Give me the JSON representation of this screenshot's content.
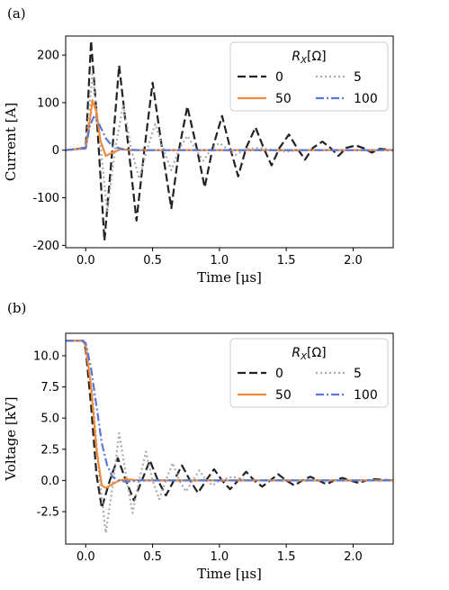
{
  "chart_data": [
    {
      "type": "line",
      "panel_label": "(a)",
      "xlabel": "Time [μs]",
      "ylabel": "Current [A]",
      "xlim": [
        -0.15,
        2.3
      ],
      "ylim": [
        -205,
        240
      ],
      "xticks": [
        0.0,
        0.5,
        1.0,
        1.5,
        2.0
      ],
      "xtick_labels": [
        "0.0",
        "0.5",
        "1.0",
        "1.5",
        "2.0"
      ],
      "yticks": [
        200,
        100,
        0,
        -100,
        -200
      ],
      "ytick_labels": [
        "200",
        "100",
        "0",
        "-100",
        "-200"
      ],
      "legend": {
        "title": "R_X[Ω]",
        "position": "top-right",
        "columns": 2
      },
      "series": [
        {
          "name": "0",
          "color": "#222222",
          "style": "dashed",
          "x": [
            -0.15,
            0.0,
            0.04,
            0.08,
            0.14,
            0.2,
            0.25,
            0.32,
            0.38,
            0.44,
            0.5,
            0.57,
            0.64,
            0.7,
            0.76,
            0.83,
            0.89,
            0.95,
            1.02,
            1.08,
            1.14,
            1.2,
            1.27,
            1.33,
            1.39,
            1.45,
            1.52,
            1.58,
            1.64,
            1.7,
            1.77,
            1.83,
            1.89,
            1.95,
            2.02,
            2.08,
            2.14,
            2.2,
            2.3
          ],
          "y": [
            0,
            5,
            230,
            80,
            -190,
            5,
            178,
            5,
            -148,
            5,
            142,
            5,
            -122,
            5,
            92,
            5,
            -78,
            5,
            72,
            5,
            -55,
            5,
            48,
            5,
            -32,
            5,
            33,
            5,
            -20,
            5,
            18,
            5,
            -12,
            5,
            10,
            4,
            -5,
            3,
            0
          ]
        },
        {
          "name": "5",
          "color": "#aaaaaa",
          "style": "dotted",
          "x": [
            -0.15,
            0.0,
            0.05,
            0.1,
            0.16,
            0.22,
            0.28,
            0.34,
            0.4,
            0.46,
            0.52,
            0.58,
            0.64,
            0.7,
            0.76,
            0.82,
            0.88,
            0.94,
            1.0,
            1.06,
            1.12,
            1.2,
            1.3,
            1.4,
            1.5,
            1.6,
            1.8,
            2.0,
            2.3
          ],
          "y": [
            0,
            3,
            160,
            40,
            -130,
            3,
            95,
            3,
            -60,
            3,
            55,
            3,
            -42,
            3,
            30,
            3,
            -22,
            3,
            15,
            3,
            -10,
            2,
            5,
            0,
            -3,
            0,
            0,
            0,
            0
          ]
        },
        {
          "name": "50",
          "color": "#f08a3c",
          "style": "solid",
          "x": [
            -0.15,
            0.0,
            0.03,
            0.05,
            0.08,
            0.11,
            0.15,
            0.2,
            0.26,
            0.35,
            0.5,
            2.3
          ],
          "y": [
            0,
            4,
            60,
            105,
            80,
            20,
            -12,
            -5,
            2,
            0,
            0,
            0
          ]
        },
        {
          "name": "100",
          "color": "#5b78d8",
          "style": "dashdot",
          "x": [
            -0.15,
            0.0,
            0.03,
            0.06,
            0.1,
            0.15,
            0.2,
            0.28,
            0.4,
            0.6,
            2.3
          ],
          "y": [
            0,
            4,
            50,
            70,
            55,
            25,
            8,
            2,
            0,
            0,
            0
          ]
        }
      ]
    },
    {
      "type": "line",
      "panel_label": "(b)",
      "xlabel": "Time [μs]",
      "ylabel": "Voltage [kV]",
      "xlim": [
        -0.15,
        2.3
      ],
      "ylim": [
        -5.1,
        11.8
      ],
      "xticks": [
        0.0,
        0.5,
        1.0,
        1.5,
        2.0
      ],
      "xtick_labels": [
        "0.0",
        "0.5",
        "1.0",
        "1.5",
        "2.0"
      ],
      "yticks": [
        10.0,
        7.5,
        5.0,
        2.5,
        0.0,
        -2.5
      ],
      "ytick_labels": [
        "10.0",
        "7.5",
        "5.0",
        "2.5",
        "0.0",
        "-2.5"
      ],
      "legend": {
        "title": "R_X[Ω]",
        "position": "top-right",
        "columns": 2
      },
      "series": [
        {
          "name": "0",
          "color": "#222222",
          "style": "dashed",
          "x": [
            -0.15,
            -0.02,
            0.0,
            0.04,
            0.08,
            0.12,
            0.18,
            0.24,
            0.3,
            0.36,
            0.42,
            0.48,
            0.54,
            0.6,
            0.66,
            0.72,
            0.78,
            0.84,
            0.9,
            0.96,
            1.02,
            1.08,
            1.14,
            1.2,
            1.26,
            1.32,
            1.38,
            1.44,
            1.5,
            1.56,
            1.62,
            1.68,
            1.74,
            1.8,
            1.86,
            1.92,
            1.98,
            2.04,
            2.1,
            2.16,
            2.3
          ],
          "y": [
            11.2,
            11.2,
            10.5,
            6.0,
            0.5,
            -2.2,
            0.0,
            1.8,
            0.0,
            -1.6,
            0.0,
            1.6,
            0.0,
            -1.2,
            0.0,
            1.2,
            0.0,
            -1.0,
            0.0,
            0.9,
            0.0,
            -0.7,
            0.0,
            0.7,
            0.0,
            -0.5,
            0.0,
            0.5,
            0.0,
            -0.4,
            0.0,
            0.3,
            0.0,
            -0.3,
            0.0,
            0.2,
            0.0,
            -0.2,
            0.0,
            0.1,
            0.0
          ]
        },
        {
          "name": "5",
          "color": "#aaaaaa",
          "style": "dotted",
          "x": [
            -0.15,
            -0.02,
            0.0,
            0.05,
            0.1,
            0.15,
            0.2,
            0.25,
            0.3,
            0.35,
            0.4,
            0.45,
            0.5,
            0.55,
            0.6,
            0.65,
            0.7,
            0.75,
            0.8,
            0.85,
            0.9,
            0.95,
            1.0,
            1.1,
            1.2,
            1.4,
            2.3
          ],
          "y": [
            11.2,
            11.2,
            10.8,
            7.0,
            0.5,
            -4.2,
            -0.5,
            3.8,
            0.5,
            -2.6,
            0.0,
            2.3,
            0.0,
            -1.5,
            0.0,
            1.4,
            0.0,
            -0.9,
            0.0,
            0.8,
            0.0,
            -0.4,
            0.0,
            0.3,
            0.0,
            0.0,
            0.0
          ]
        },
        {
          "name": "50",
          "color": "#f08a3c",
          "style": "solid",
          "x": [
            -0.15,
            -0.02,
            0.0,
            0.04,
            0.08,
            0.12,
            0.15,
            0.2,
            0.25,
            0.3,
            0.4,
            2.3
          ],
          "y": [
            11.2,
            11.2,
            10.8,
            7.5,
            2.5,
            -0.4,
            -0.6,
            -0.3,
            0.0,
            0.1,
            0.0,
            0.0
          ]
        },
        {
          "name": "100",
          "color": "#5b78d8",
          "style": "dashdot",
          "x": [
            -0.15,
            -0.02,
            0.0,
            0.04,
            0.08,
            0.12,
            0.16,
            0.2,
            0.25,
            0.3,
            0.4,
            2.3
          ],
          "y": [
            11.2,
            11.2,
            11.0,
            9.0,
            6.0,
            3.0,
            1.2,
            0.3,
            0.0,
            -0.1,
            0.0,
            0.0
          ]
        }
      ]
    }
  ]
}
